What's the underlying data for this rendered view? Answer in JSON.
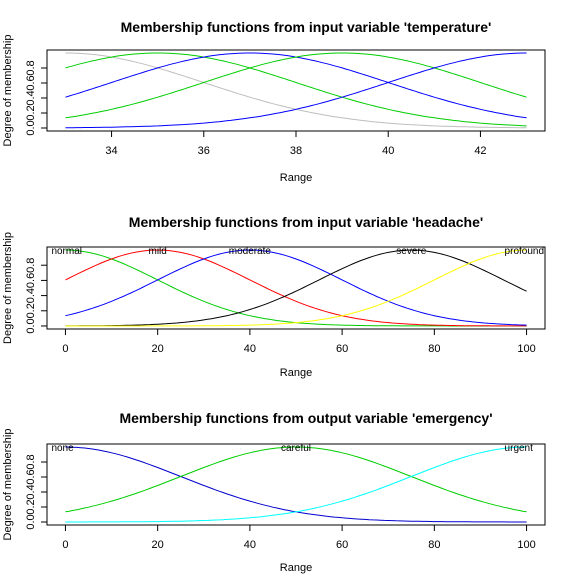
{
  "chart_data": [
    {
      "type": "line",
      "title": "Membership functions from input variable 'temperature'",
      "xlabel": "Range",
      "ylabel": "Degree of membership",
      "xlim": [
        33,
        43
      ],
      "ylim": [
        0,
        1
      ],
      "x_ticks": [
        "34",
        "36",
        "38",
        "40",
        "42"
      ],
      "y_ticks": [
        "0.0",
        "0.2",
        "0.4",
        "0.6",
        "0.8"
      ],
      "show_labels": false,
      "series": [
        {
          "color": "#bebebe",
          "center": 33,
          "sigma": 3
        },
        {
          "color": "#00cd00",
          "center": 35,
          "sigma": 3
        },
        {
          "color": "#0000ff",
          "center": 37,
          "sigma": 3
        },
        {
          "color": "#00cd00",
          "center": 39,
          "sigma": 3
        },
        {
          "color": "#0000ff",
          "center": 43,
          "sigma": 3
        }
      ]
    },
    {
      "type": "line",
      "title": "Membership functions from input variable 'headache'",
      "xlabel": "Range",
      "ylabel": "Degree of membership",
      "xlim": [
        0,
        100
      ],
      "ylim": [
        0,
        1
      ],
      "x_ticks": [
        "0",
        "20",
        "40",
        "60",
        "80",
        "100"
      ],
      "y_ticks": [
        "0.0",
        "0.2",
        "0.4",
        "0.6",
        "0.8"
      ],
      "show_labels": true,
      "series": [
        {
          "name": "normal",
          "color": "#00cd00",
          "center": 0,
          "sigma": 20
        },
        {
          "name": "mild",
          "color": "#ff0000",
          "center": 20,
          "sigma": 20
        },
        {
          "name": "moderate",
          "color": "#0000ff",
          "center": 40,
          "sigma": 20
        },
        {
          "name": "severe",
          "color": "#000000",
          "center": 75,
          "sigma": 20
        },
        {
          "name": "profound",
          "color": "#ffff00",
          "center": 100,
          "sigma": 20
        }
      ]
    },
    {
      "type": "line",
      "title": "Membership functions from output variable 'emergency'",
      "xlabel": "Range",
      "ylabel": "Degree of membership",
      "xlim": [
        0,
        100
      ],
      "ylim": [
        0,
        1
      ],
      "x_ticks": [
        "0",
        "20",
        "40",
        "60",
        "80",
        "100"
      ],
      "y_ticks": [
        "0.0",
        "0.2",
        "0.4",
        "0.6",
        "0.8"
      ],
      "show_labels": true,
      "series": [
        {
          "name": "none",
          "color": "#0000cd",
          "center": 0,
          "sigma": 25
        },
        {
          "name": "careful",
          "color": "#00cd00",
          "center": 50,
          "sigma": 25
        },
        {
          "name": "urgent",
          "color": "#00ffff",
          "center": 100,
          "sigma": 25
        }
      ]
    }
  ]
}
